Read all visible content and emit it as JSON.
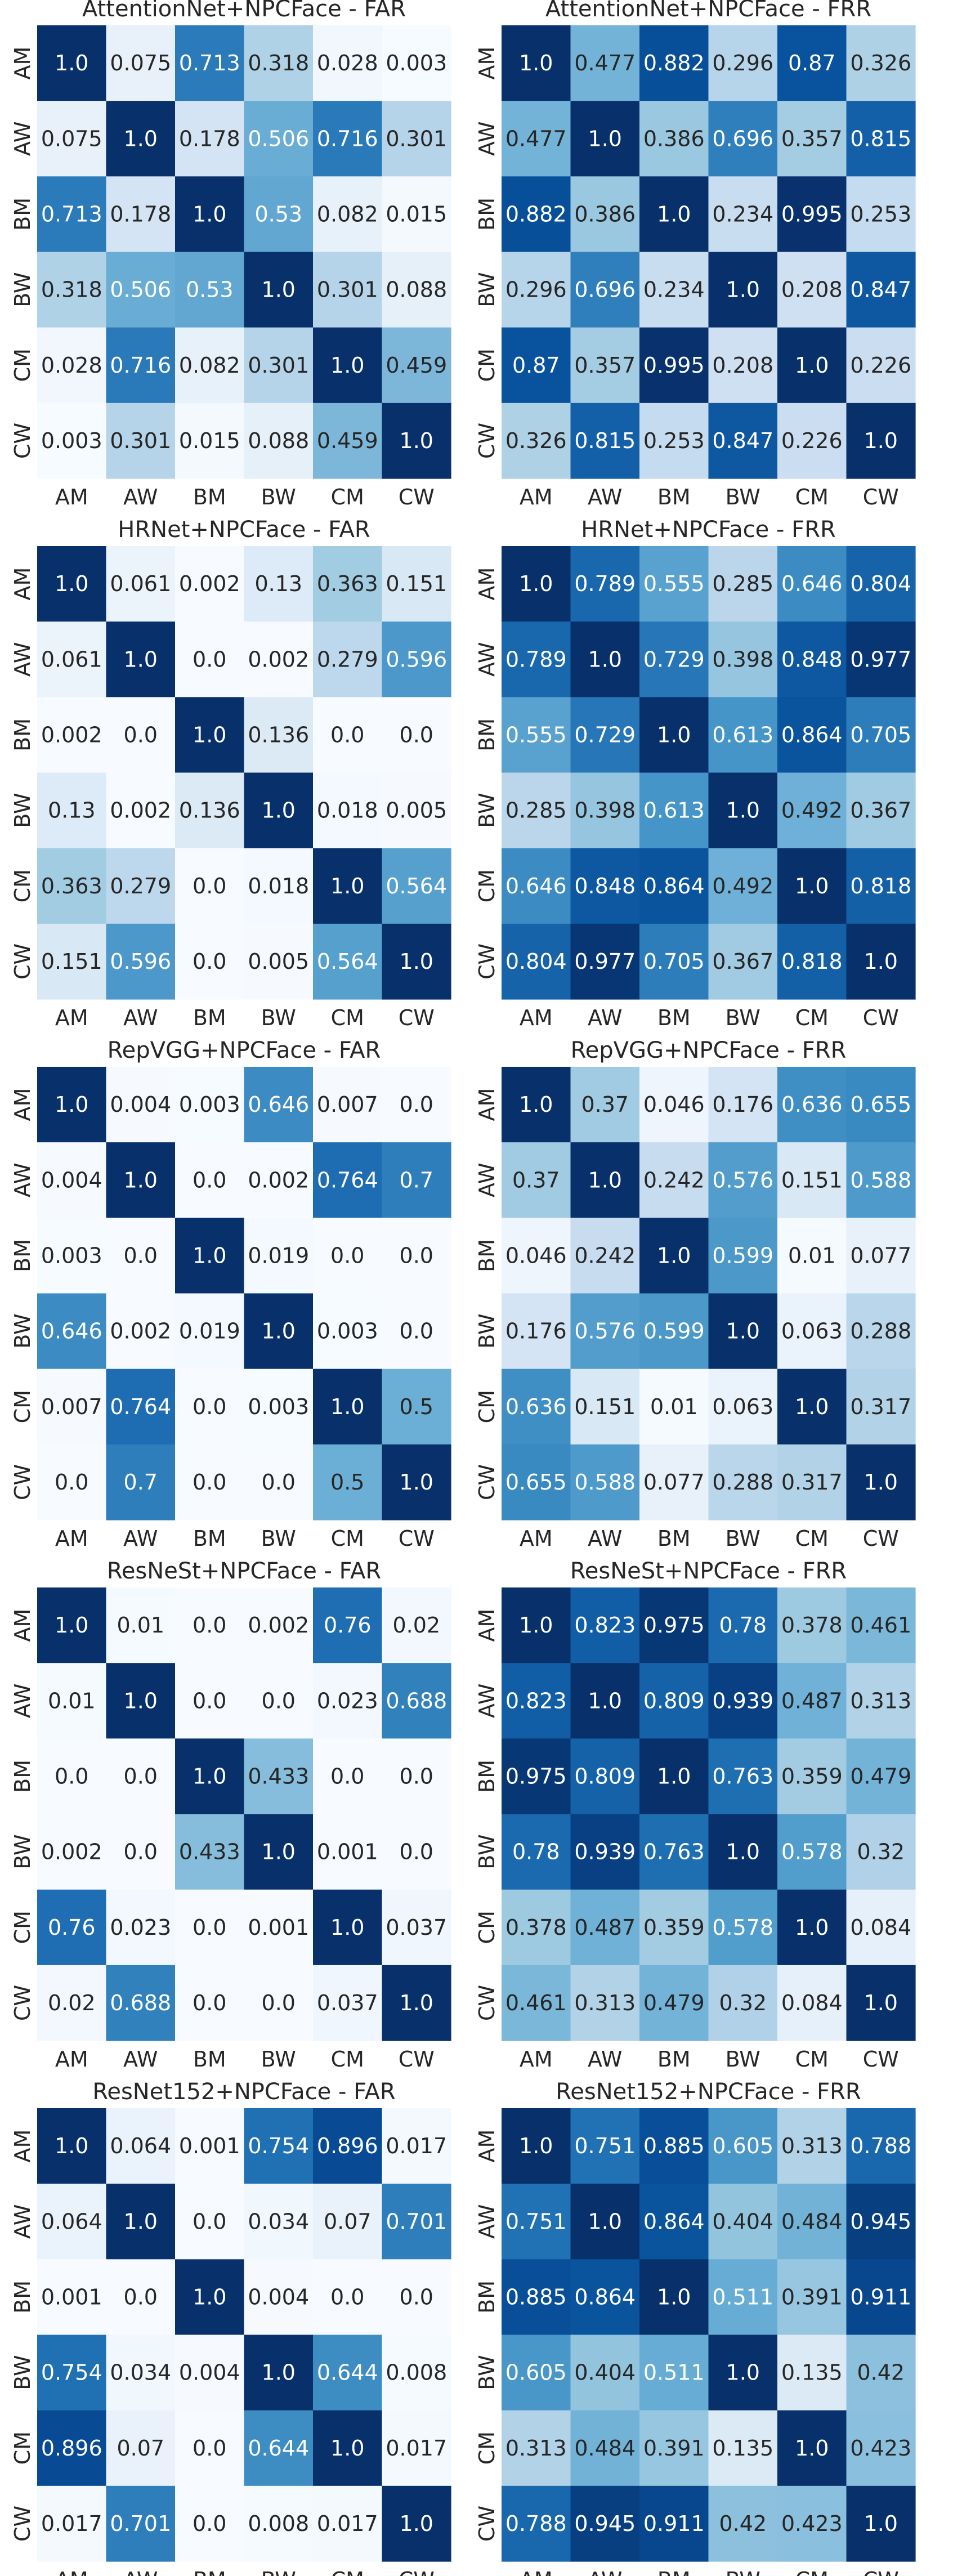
{
  "chart_data": [
    {
      "type": "heatmap",
      "title": "AttentionNet+NPCFace - FAR",
      "x_labels": [
        "AM",
        "AW",
        "BM",
        "BW",
        "CM",
        "CW"
      ],
      "y_labels": [
        "AM",
        "AW",
        "BM",
        "BW",
        "CM",
        "CW"
      ],
      "values": [
        [
          "1.0",
          "0.075",
          "0.713",
          "0.318",
          "0.028",
          "0.003"
        ],
        [
          "0.075",
          "1.0",
          "0.178",
          "0.506",
          "0.716",
          "0.301"
        ],
        [
          "0.713",
          "0.178",
          "1.0",
          "0.53",
          "0.082",
          "0.015"
        ],
        [
          "0.318",
          "0.506",
          "0.53",
          "1.0",
          "0.301",
          "0.088"
        ],
        [
          "0.028",
          "0.716",
          "0.082",
          "0.301",
          "1.0",
          "0.459"
        ],
        [
          "0.003",
          "0.301",
          "0.015",
          "0.088",
          "0.459",
          "1.0"
        ]
      ],
      "colormap": "Blues",
      "value_range": [
        0,
        1
      ]
    },
    {
      "type": "heatmap",
      "title": "AttentionNet+NPCFace - FRR",
      "x_labels": [
        "AM",
        "AW",
        "BM",
        "BW",
        "CM",
        "CW"
      ],
      "y_labels": [
        "AM",
        "AW",
        "BM",
        "BW",
        "CM",
        "CW"
      ],
      "values": [
        [
          "1.0",
          "0.477",
          "0.882",
          "0.296",
          "0.87",
          "0.326"
        ],
        [
          "0.477",
          "1.0",
          "0.386",
          "0.696",
          "0.357",
          "0.815"
        ],
        [
          "0.882",
          "0.386",
          "1.0",
          "0.234",
          "0.995",
          "0.253"
        ],
        [
          "0.296",
          "0.696",
          "0.234",
          "1.0",
          "0.208",
          "0.847"
        ],
        [
          "0.87",
          "0.357",
          "0.995",
          "0.208",
          "1.0",
          "0.226"
        ],
        [
          "0.326",
          "0.815",
          "0.253",
          "0.847",
          "0.226",
          "1.0"
        ]
      ],
      "colormap": "Blues",
      "value_range": [
        0,
        1
      ]
    },
    {
      "type": "heatmap",
      "title": "HRNet+NPCFace - FAR",
      "x_labels": [
        "AM",
        "AW",
        "BM",
        "BW",
        "CM",
        "CW"
      ],
      "y_labels": [
        "AM",
        "AW",
        "BM",
        "BW",
        "CM",
        "CW"
      ],
      "values": [
        [
          "1.0",
          "0.061",
          "0.002",
          "0.13",
          "0.363",
          "0.151"
        ],
        [
          "0.061",
          "1.0",
          "0.0",
          "0.002",
          "0.279",
          "0.596"
        ],
        [
          "0.002",
          "0.0",
          "1.0",
          "0.136",
          "0.0",
          "0.0"
        ],
        [
          "0.13",
          "0.002",
          "0.136",
          "1.0",
          "0.018",
          "0.005"
        ],
        [
          "0.363",
          "0.279",
          "0.0",
          "0.018",
          "1.0",
          "0.564"
        ],
        [
          "0.151",
          "0.596",
          "0.0",
          "0.005",
          "0.564",
          "1.0"
        ]
      ],
      "colormap": "Blues",
      "value_range": [
        0,
        1
      ]
    },
    {
      "type": "heatmap",
      "title": "HRNet+NPCFace - FRR",
      "x_labels": [
        "AM",
        "AW",
        "BM",
        "BW",
        "CM",
        "CW"
      ],
      "y_labels": [
        "AM",
        "AW",
        "BM",
        "BW",
        "CM",
        "CW"
      ],
      "values": [
        [
          "1.0",
          "0.789",
          "0.555",
          "0.285",
          "0.646",
          "0.804"
        ],
        [
          "0.789",
          "1.0",
          "0.729",
          "0.398",
          "0.848",
          "0.977"
        ],
        [
          "0.555",
          "0.729",
          "1.0",
          "0.613",
          "0.864",
          "0.705"
        ],
        [
          "0.285",
          "0.398",
          "0.613",
          "1.0",
          "0.492",
          "0.367"
        ],
        [
          "0.646",
          "0.848",
          "0.864",
          "0.492",
          "1.0",
          "0.818"
        ],
        [
          "0.804",
          "0.977",
          "0.705",
          "0.367",
          "0.818",
          "1.0"
        ]
      ],
      "colormap": "Blues",
      "value_range": [
        0,
        1
      ]
    },
    {
      "type": "heatmap",
      "title": "RepVGG+NPCFace - FAR",
      "x_labels": [
        "AM",
        "AW",
        "BM",
        "BW",
        "CM",
        "CW"
      ],
      "y_labels": [
        "AM",
        "AW",
        "BM",
        "BW",
        "CM",
        "CW"
      ],
      "values": [
        [
          "1.0",
          "0.004",
          "0.003",
          "0.646",
          "0.007",
          "0.0"
        ],
        [
          "0.004",
          "1.0",
          "0.0",
          "0.002",
          "0.764",
          "0.7"
        ],
        [
          "0.003",
          "0.0",
          "1.0",
          "0.019",
          "0.0",
          "0.0"
        ],
        [
          "0.646",
          "0.002",
          "0.019",
          "1.0",
          "0.003",
          "0.0"
        ],
        [
          "0.007",
          "0.764",
          "0.0",
          "0.003",
          "1.0",
          "0.5"
        ],
        [
          "0.0",
          "0.7",
          "0.0",
          "0.0",
          "0.5",
          "1.0"
        ]
      ],
      "colormap": "Blues",
      "value_range": [
        0,
        1
      ]
    },
    {
      "type": "heatmap",
      "title": "RepVGG+NPCFace - FRR",
      "x_labels": [
        "AM",
        "AW",
        "BM",
        "BW",
        "CM",
        "CW"
      ],
      "y_labels": [
        "AM",
        "AW",
        "BM",
        "BW",
        "CM",
        "CW"
      ],
      "values": [
        [
          "1.0",
          "0.37",
          "0.046",
          "0.176",
          "0.636",
          "0.655"
        ],
        [
          "0.37",
          "1.0",
          "0.242",
          "0.576",
          "0.151",
          "0.588"
        ],
        [
          "0.046",
          "0.242",
          "1.0",
          "0.599",
          "0.01",
          "0.077"
        ],
        [
          "0.176",
          "0.576",
          "0.599",
          "1.0",
          "0.063",
          "0.288"
        ],
        [
          "0.636",
          "0.151",
          "0.01",
          "0.063",
          "1.0",
          "0.317"
        ],
        [
          "0.655",
          "0.588",
          "0.077",
          "0.288",
          "0.317",
          "1.0"
        ]
      ],
      "colormap": "Blues",
      "value_range": [
        0,
        1
      ]
    },
    {
      "type": "heatmap",
      "title": "ResNeSt+NPCFace - FAR",
      "x_labels": [
        "AM",
        "AW",
        "BM",
        "BW",
        "CM",
        "CW"
      ],
      "y_labels": [
        "AM",
        "AW",
        "BM",
        "BW",
        "CM",
        "CW"
      ],
      "values": [
        [
          "1.0",
          "0.01",
          "0.0",
          "0.002",
          "0.76",
          "0.02"
        ],
        [
          "0.01",
          "1.0",
          "0.0",
          "0.0",
          "0.023",
          "0.688"
        ],
        [
          "0.0",
          "0.0",
          "1.0",
          "0.433",
          "0.0",
          "0.0"
        ],
        [
          "0.002",
          "0.0",
          "0.433",
          "1.0",
          "0.001",
          "0.0"
        ],
        [
          "0.76",
          "0.023",
          "0.0",
          "0.001",
          "1.0",
          "0.037"
        ],
        [
          "0.02",
          "0.688",
          "0.0",
          "0.0",
          "0.037",
          "1.0"
        ]
      ],
      "colormap": "Blues",
      "value_range": [
        0,
        1
      ]
    },
    {
      "type": "heatmap",
      "title": "ResNeSt+NPCFace - FRR",
      "x_labels": [
        "AM",
        "AW",
        "BM",
        "BW",
        "CM",
        "CW"
      ],
      "y_labels": [
        "AM",
        "AW",
        "BM",
        "BW",
        "CM",
        "CW"
      ],
      "values": [
        [
          "1.0",
          "0.823",
          "0.975",
          "0.78",
          "0.378",
          "0.461"
        ],
        [
          "0.823",
          "1.0",
          "0.809",
          "0.939",
          "0.487",
          "0.313"
        ],
        [
          "0.975",
          "0.809",
          "1.0",
          "0.763",
          "0.359",
          "0.479"
        ],
        [
          "0.78",
          "0.939",
          "0.763",
          "1.0",
          "0.578",
          "0.32"
        ],
        [
          "0.378",
          "0.487",
          "0.359",
          "0.578",
          "1.0",
          "0.084"
        ],
        [
          "0.461",
          "0.313",
          "0.479",
          "0.32",
          "0.084",
          "1.0"
        ]
      ],
      "colormap": "Blues",
      "value_range": [
        0,
        1
      ]
    },
    {
      "type": "heatmap",
      "title": "ResNet152+NPCFace - FAR",
      "x_labels": [
        "AM",
        "AW",
        "BM",
        "BW",
        "CM",
        "CW"
      ],
      "y_labels": [
        "AM",
        "AW",
        "BM",
        "BW",
        "CM",
        "CW"
      ],
      "values": [
        [
          "1.0",
          "0.064",
          "0.001",
          "0.754",
          "0.896",
          "0.017"
        ],
        [
          "0.064",
          "1.0",
          "0.0",
          "0.034",
          "0.07",
          "0.701"
        ],
        [
          "0.001",
          "0.0",
          "1.0",
          "0.004",
          "0.0",
          "0.0"
        ],
        [
          "0.754",
          "0.034",
          "0.004",
          "1.0",
          "0.644",
          "0.008"
        ],
        [
          "0.896",
          "0.07",
          "0.0",
          "0.644",
          "1.0",
          "0.017"
        ],
        [
          "0.017",
          "0.701",
          "0.0",
          "0.008",
          "0.017",
          "1.0"
        ]
      ],
      "colormap": "Blues",
      "value_range": [
        0,
        1
      ]
    },
    {
      "type": "heatmap",
      "title": "ResNet152+NPCFace - FRR",
      "x_labels": [
        "AM",
        "AW",
        "BM",
        "BW",
        "CM",
        "CW"
      ],
      "y_labels": [
        "AM",
        "AW",
        "BM",
        "BW",
        "CM",
        "CW"
      ],
      "values": [
        [
          "1.0",
          "0.751",
          "0.885",
          "0.605",
          "0.313",
          "0.788"
        ],
        [
          "0.751",
          "1.0",
          "0.864",
          "0.404",
          "0.484",
          "0.945"
        ],
        [
          "0.885",
          "0.864",
          "1.0",
          "0.511",
          "0.391",
          "0.911"
        ],
        [
          "0.605",
          "0.404",
          "0.511",
          "1.0",
          "0.135",
          "0.42"
        ],
        [
          "0.313",
          "0.484",
          "0.391",
          "0.135",
          "1.0",
          "0.423"
        ],
        [
          "0.788",
          "0.945",
          "0.911",
          "0.42",
          "0.423",
          "1.0"
        ]
      ],
      "colormap": "Blues",
      "value_range": [
        0,
        1
      ]
    }
  ]
}
